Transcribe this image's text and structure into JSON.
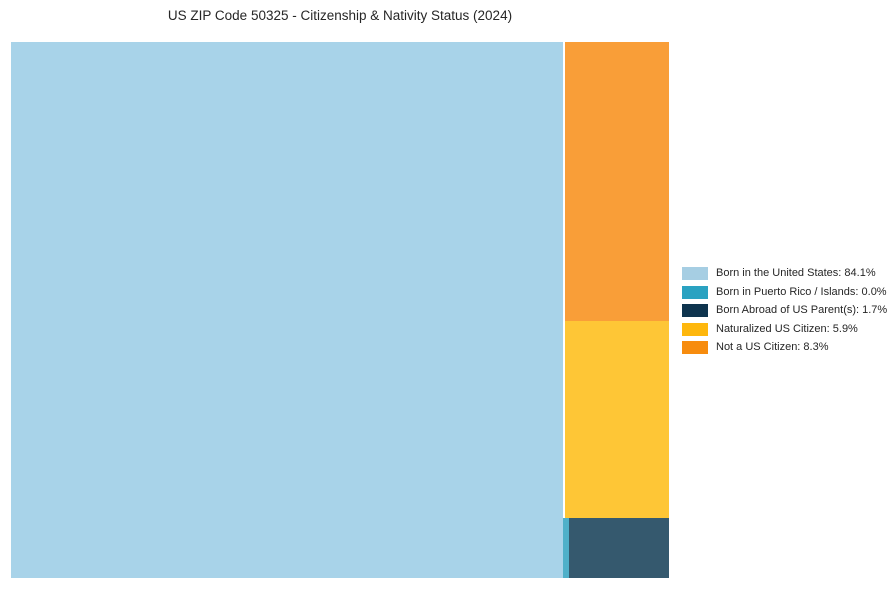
{
  "chart_data": {
    "type": "treemap",
    "title": "US ZIP Code 50325 - Citizenship & Nativity Status (2024)",
    "unit": "percent",
    "legend_position": "right",
    "series": [
      {
        "label": "Born in the United States",
        "value": 84.1,
        "block_color": "#a8d3e9",
        "legend_color": "#a6cee3"
      },
      {
        "label": "Born in Puerto Rico / Islands",
        "value": 0.0,
        "block_color": "#4fb0c9",
        "legend_color": "#2aa2c1"
      },
      {
        "label": "Born Abroad of US Parent(s)",
        "value": 1.7,
        "block_color": "#35596e",
        "legend_color": "#0e344e"
      },
      {
        "label": "Naturalized US Citizen",
        "value": 5.9,
        "block_color": "#fec636",
        "legend_color": "#feb70d"
      },
      {
        "label": "Not a US Citizen",
        "value": 8.3,
        "block_color": "#f99e38",
        "legend_color": "#f78c0e"
      }
    ],
    "legend_entries": [
      "Born in the United States: 84.1%",
      "Born in Puerto Rico / Islands: 0.0%",
      "Born Abroad of US Parent(s): 1.7%",
      "Naturalized US Citizen: 5.9%",
      "Not a US Citizen: 8.3%"
    ]
  }
}
